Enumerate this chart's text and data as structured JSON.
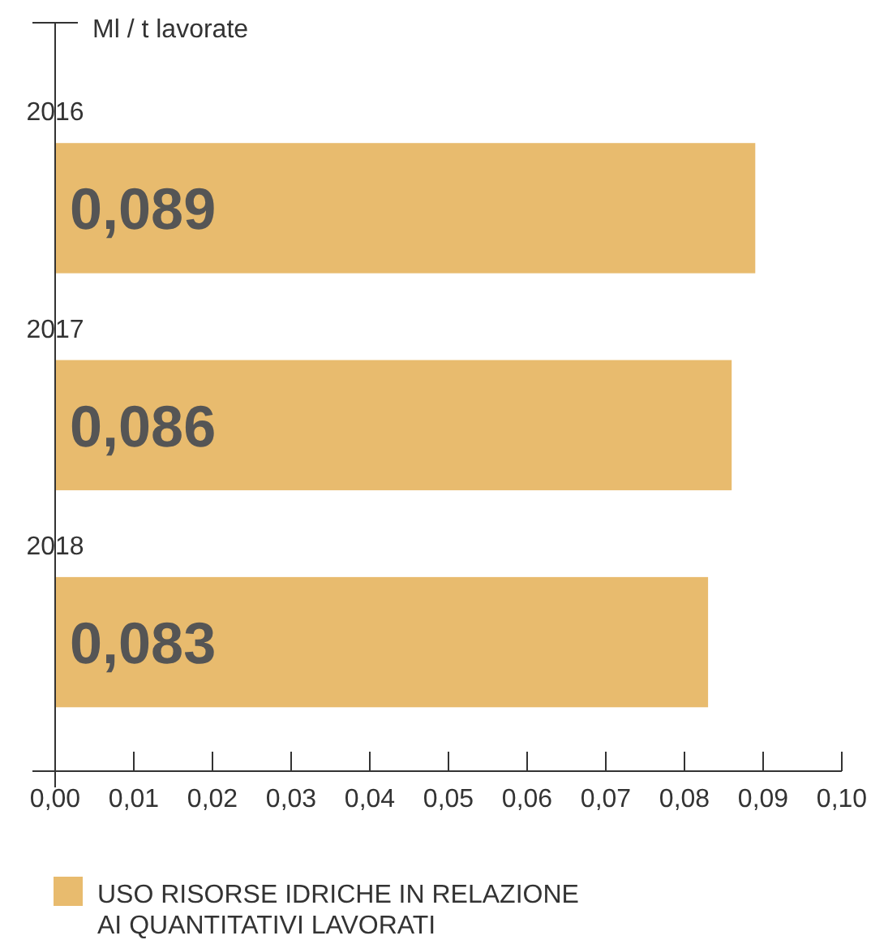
{
  "chart_data": {
    "type": "bar",
    "orientation": "horizontal",
    "xlabel": "Ml / t lavorate",
    "categories": [
      "2016",
      "2017",
      "2018"
    ],
    "series": [
      {
        "name": "USO RISORSE IDRICHE IN RELAZIONE AI QUANTITATIVI LAVORATI",
        "color": "#e8bb6e",
        "values": [
          0.089,
          0.086,
          0.083
        ],
        "value_labels": [
          "0,089",
          "0,086",
          "0,083"
        ]
      }
    ],
    "xlim": [
      0,
      0.1
    ],
    "xticks": [
      {
        "value": 0,
        "label": "0,00"
      },
      {
        "value": 0.01,
        "label": "0,01"
      },
      {
        "value": 0.02,
        "label": "0,02"
      },
      {
        "value": 0.03,
        "label": "0,03"
      },
      {
        "value": 0.04,
        "label": "0,04"
      },
      {
        "value": 0.05,
        "label": "0,05"
      },
      {
        "value": 0.06,
        "label": "0,06"
      },
      {
        "value": 0.07,
        "label": "0,07"
      },
      {
        "value": 0.08,
        "label": "0,08"
      },
      {
        "value": 0.09,
        "label": "0,09"
      },
      {
        "value": 0.1,
        "label": "0,10"
      }
    ],
    "grid": false,
    "legend": "bottom left"
  }
}
